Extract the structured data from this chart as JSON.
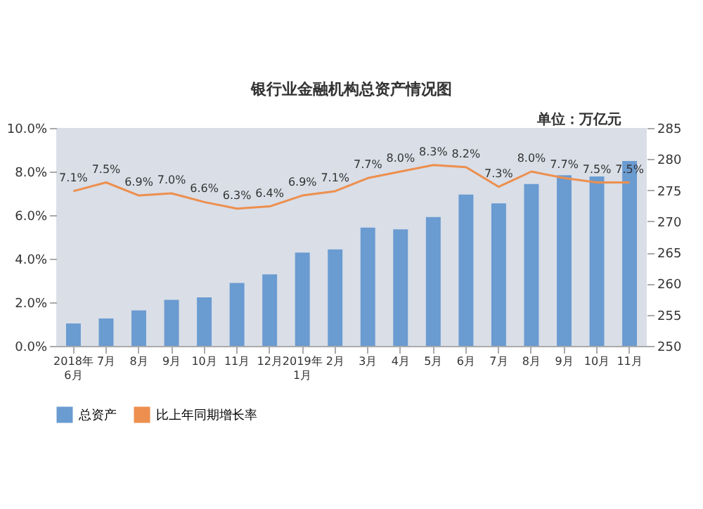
{
  "chart_data": {
    "type": "bar",
    "title": "银行业金融机构总资产情况图",
    "annotations": [
      "单位：万亿元"
    ],
    "categories": [
      "2018年\n6月",
      "7月",
      "8月",
      "9月",
      "10月",
      "11月",
      "12月",
      "2019年\n1月",
      "2月",
      "3月",
      "4月",
      "5月",
      "6月",
      "7月",
      "8月",
      "9月",
      "10月",
      "11月"
    ],
    "series": [
      {
        "name": "总资产",
        "axis": "y2",
        "color": "#6a9bd1",
        "values": [
          253.6,
          254.4,
          255.7,
          257.4,
          257.8,
          260.1,
          261.5,
          265.0,
          265.5,
          269.0,
          268.7,
          270.7,
          274.3,
          272.9,
          276.0,
          277.4,
          277.2,
          279.7
        ]
      },
      {
        "name": "比上年同期增长率",
        "type": "line",
        "color": "#ed8f4e",
        "values": [
          7.1,
          7.5,
          6.9,
          7.0,
          6.6,
          6.3,
          6.4,
          6.9,
          7.1,
          7.7,
          8.0,
          8.3,
          8.2,
          7.3,
          8.0,
          7.7,
          7.5,
          7.5
        ],
        "value_labels": [
          "7.1%",
          "7.5%",
          "6.9%",
          "7.0%",
          "6.6%",
          "6.3%",
          "6.4%",
          "6.9%",
          "7.1%",
          "7.7%",
          "8.0%",
          "8.3%",
          "8.2%",
          "7.3%",
          "8.0%",
          "7.7%",
          "7.5%",
          "7.5%"
        ]
      }
    ],
    "ylim": [
      0,
      10
    ],
    "yticks": [
      {
        "value": 0,
        "label": "0.0%"
      },
      {
        "value": 2,
        "label": "2.0%"
      },
      {
        "value": 4,
        "label": "4.0%"
      },
      {
        "value": 6,
        "label": "6.0%"
      },
      {
        "value": 8,
        "label": "8.0%"
      },
      {
        "value": 10,
        "label": "10.0%"
      }
    ],
    "y2lim": [
      250,
      285
    ],
    "y2ticks": [
      250,
      255,
      260,
      265,
      270,
      275,
      280,
      285
    ],
    "legend": "bottom",
    "grid": false,
    "marker": "none"
  }
}
